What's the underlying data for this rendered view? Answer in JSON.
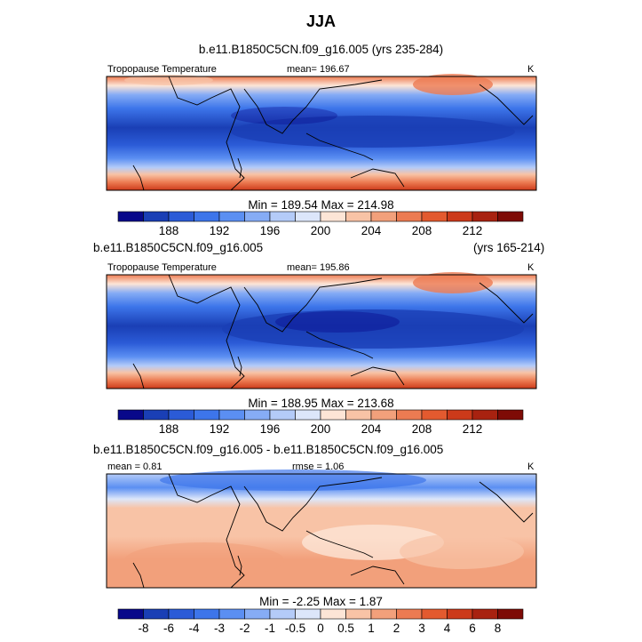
{
  "page": {
    "title": "JJA"
  },
  "panel1": {
    "subtitle": "b.e11.B1850C5CN.f09_g16.005 (yrs 235-284)",
    "left_label": "Tropopause Temperature",
    "stat": "mean= 196.67",
    "units": "K",
    "minmax": "Min = 189.54 Max = 214.98"
  },
  "panel2": {
    "subtitle_left": "b.e11.B1850C5CN.f09_g16.005",
    "subtitle_right": "(yrs 165-214)",
    "left_label": "Tropopause Temperature",
    "stat": "mean= 195.86",
    "units": "K",
    "minmax": "Min = 188.95 Max = 213.68"
  },
  "panel3": {
    "subtitle": "b.e11.B1850C5CN.f09_g16.005 - b.e11.B1850C5CN.f09_g16.005",
    "stat_mean": "mean =   0.81",
    "stat_rmse": "rmse =   1.06",
    "units": "K",
    "minmax": "Min =  -2.25 Max =   1.87"
  },
  "colors": {
    "temp_scale": [
      "#08088a",
      "#1a3fb5",
      "#2b5bd7",
      "#3d75ea",
      "#5b8ff2",
      "#86acf5",
      "#b4cbf8",
      "#dce6fa",
      "#fde5d6",
      "#f8c3a6",
      "#f2a07b",
      "#ec7b52",
      "#e35a2f",
      "#cc3a1a",
      "#a82210",
      "#7e0b06"
    ],
    "diff_scale": [
      "#08088a",
      "#1a3fb5",
      "#2b5bd7",
      "#3d75ea",
      "#5b8ff2",
      "#86acf5",
      "#b4cbf8",
      "#dce6fa",
      "#fde5d6",
      "#f8c3a6",
      "#f2a07b",
      "#ec7b52",
      "#e35a2f",
      "#cc3a1a",
      "#a82210",
      "#7e0b06"
    ]
  },
  "chart_data": [
    {
      "type": "heatmap",
      "title": "b.e11.B1850C5CN.f09_g16.005 (yrs 235-284)",
      "variable": "Tropopause Temperature",
      "units": "K",
      "mean": 196.67,
      "min": 189.54,
      "max": 214.98,
      "colorbar_ticks": [
        "188",
        "192",
        "196",
        "200",
        "204",
        "208",
        "212"
      ],
      "pattern_rows_south_to_north": [
        211,
        207,
        203,
        199,
        195,
        191,
        190,
        191,
        194,
        198,
        203,
        207,
        210
      ]
    },
    {
      "type": "heatmap",
      "title": "b.e11.B1850C5CN.f09_g16.005 (yrs 165-214)",
      "variable": "Tropopause Temperature",
      "units": "K",
      "mean": 195.86,
      "min": 188.95,
      "max": 213.68,
      "colorbar_ticks": [
        "188",
        "192",
        "196",
        "200",
        "204",
        "208",
        "212"
      ],
      "pattern_rows_south_to_north": [
        210,
        206,
        202,
        198,
        194,
        190,
        189,
        190,
        193,
        197,
        202,
        206,
        209
      ]
    },
    {
      "type": "heatmap",
      "title": "b.e11.B1850C5CN.f09_g16.005 - b.e11.B1850C5CN.f09_g16.005",
      "units": "K",
      "mean": 0.81,
      "rmse": 1.06,
      "min": -2.25,
      "max": 1.87,
      "colorbar_ticks": [
        "-8",
        "-6",
        "-4",
        "-3",
        "-2",
        "-1",
        "-0.5",
        "0",
        "0.5",
        "1",
        "2",
        "3",
        "4",
        "6",
        "8"
      ],
      "pattern_rows_south_to_north": [
        1.5,
        1.5,
        1.0,
        1.0,
        0.5,
        0.5,
        0.5,
        1.0,
        1.0,
        0.5,
        -0.5,
        -1,
        -1.5
      ]
    }
  ]
}
